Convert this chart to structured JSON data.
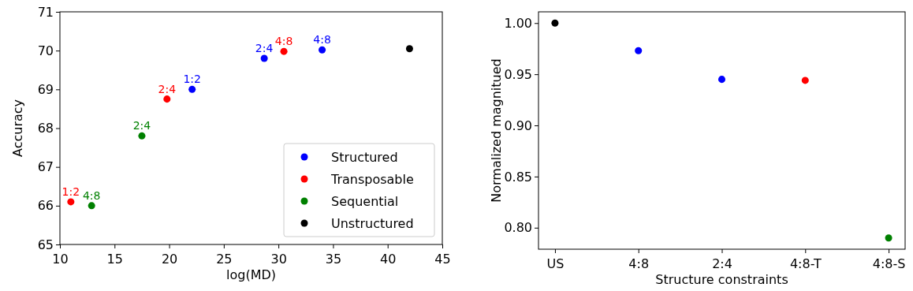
{
  "chart_data": [
    {
      "type": "scatter",
      "xlabel": "log(MD)",
      "ylabel": "Accuracy",
      "xlim": [
        10,
        45
      ],
      "xticks": [
        10,
        15,
        20,
        25,
        30,
        35,
        40,
        45
      ],
      "ylim": [
        65,
        71
      ],
      "yticks": [
        65,
        66,
        67,
        68,
        69,
        70,
        71
      ],
      "legend": "bottom right",
      "marker": "circle",
      "series": [
        {
          "name": "Structured",
          "color": "#0000ff",
          "x": [
            22.1,
            28.7,
            34.0
          ],
          "values": [
            69.0,
            69.8,
            70.02
          ],
          "value_labels": [
            "1:2",
            "2:4",
            "4:8"
          ]
        },
        {
          "name": "Transposable",
          "color": "#ff0000",
          "x": [
            11.0,
            19.8,
            30.5
          ],
          "values": [
            66.1,
            68.75,
            69.98
          ],
          "value_labels": [
            "1:2",
            "2:4",
            "4:8"
          ]
        },
        {
          "name": "Sequential",
          "color": "#008000",
          "x": [
            17.5,
            12.9
          ],
          "values": [
            67.8,
            66.0
          ],
          "value_labels": [
            "2:4",
            "4:8"
          ]
        },
        {
          "name": "Unstructured",
          "color": "#000000",
          "x": [
            42.0
          ],
          "values": [
            70.05
          ]
        }
      ]
    },
    {
      "type": "scatter",
      "xlabel": "Structure constraints",
      "ylabel": "Normalized magnitued",
      "categories": [
        "US",
        "4:8",
        "2:4",
        "4:8-T",
        "4:8-S"
      ],
      "ylim": [
        0.779,
        1.011
      ],
      "yticks": [
        {
          "value": 0.8,
          "label": "0.80"
        },
        {
          "value": 0.85,
          "label": "0.85"
        },
        {
          "value": 0.9,
          "label": "0.90"
        },
        {
          "value": 0.95,
          "label": "0.95"
        },
        {
          "value": 1.0,
          "label": "1.00"
        }
      ],
      "marker": "circle",
      "values": [
        1.0,
        0.973,
        0.945,
        0.944,
        0.79
      ],
      "colors": [
        "#000000",
        "#0000ff",
        "#0000ff",
        "#ff0000",
        "#008000"
      ]
    }
  ]
}
